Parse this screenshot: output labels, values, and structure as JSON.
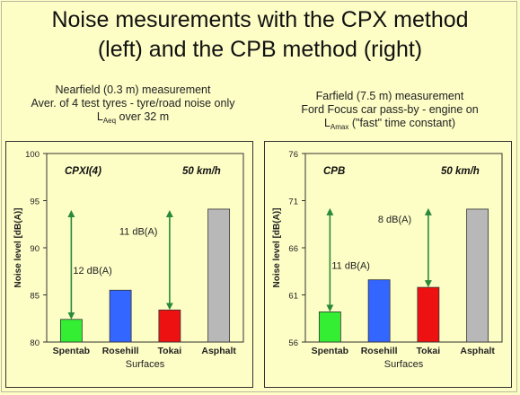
{
  "title": {
    "line1": "Noise mesurements with the CPX method",
    "line2": "(left) and the CPB method (right)"
  },
  "descriptions": {
    "left": {
      "line1": "Nearfield (0.3 m) measurement",
      "line2": "Aver. of 4 test tyres - tyre/road noise only",
      "line3_main": "L",
      "line3_sub": "Aeq",
      "line3_rest": " over 32 m"
    },
    "right": {
      "line1": "Farfield (7.5 m) measurement",
      "line2": "Ford Focus car pass-by  - engine on",
      "line3_main": "L",
      "line3_sub": "Amax",
      "line3_rest": " (\"fast\" time constant)"
    }
  },
  "chart_data": [
    {
      "type": "bar",
      "method_label": "CPXI(4)",
      "speed_label": "50 km/h",
      "categories": [
        "Spentab",
        "Rosehill",
        "Tokai",
        "Asphalt"
      ],
      "values": [
        82.4,
        85.5,
        83.4,
        94.1
      ],
      "colors": [
        "#33ee33",
        "#3366ff",
        "#ee1111",
        "#b8b8b8"
      ],
      "ylim": [
        80,
        100
      ],
      "yticks": [
        80,
        85,
        90,
        95,
        100
      ],
      "xlabel": "Surfaces",
      "ylabel": "Noise level [dB(A)]",
      "annotations": [
        {
          "text": "12 dB(A)",
          "from": 82.4,
          "to": 94.0,
          "category": "Spentab"
        },
        {
          "text": "11 dB(A)",
          "from": 83.4,
          "to": 94.0,
          "category": "Tokai"
        }
      ]
    },
    {
      "type": "bar",
      "method_label": "CPB",
      "speed_label": "50 km/h",
      "categories": [
        "Spentab",
        "Rosehill",
        "Tokai",
        "Asphalt"
      ],
      "values": [
        59.2,
        62.6,
        61.8,
        70.1
      ],
      "colors": [
        "#33ee33",
        "#3366ff",
        "#ee1111",
        "#b8b8b8"
      ],
      "ylim": [
        56,
        76
      ],
      "yticks": [
        56,
        61,
        66,
        71,
        76
      ],
      "xlabel": "Surfaces",
      "ylabel": "Noise level [dB(A)]",
      "annotations": [
        {
          "text": "11 dB(A)",
          "from": 59.2,
          "to": 70.2,
          "category": "Spentab"
        },
        {
          "text": "8 dB(A)",
          "from": 61.8,
          "to": 70.2,
          "category": "Tokai"
        }
      ]
    }
  ]
}
